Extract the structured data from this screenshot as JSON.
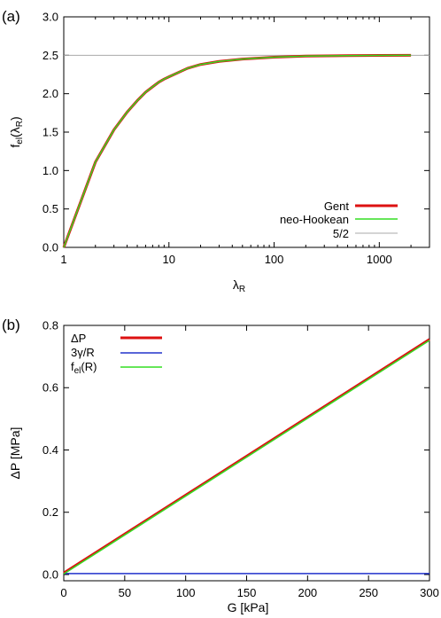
{
  "chart_data": [
    {
      "panel_label": "(a)",
      "type": "line",
      "xscale": "log",
      "xlim": [
        1,
        3000
      ],
      "ylim": [
        0,
        3.0
      ],
      "xticks": [
        1,
        10,
        100,
        1000
      ],
      "xtick_labels": [
        "1",
        "10",
        "100",
        "1000"
      ],
      "yticks": [
        0,
        0.5,
        1.0,
        1.5,
        2.0,
        2.5,
        3.0
      ],
      "ytick_labels": [
        "0.0",
        "0.5",
        "1.0",
        "1.5",
        "2.0",
        "2.5",
        "3.0"
      ],
      "xlabel": "λ",
      "xlabel_sub": "R",
      "ylabel": "f",
      "ylabel_sub": "el",
      "ylabel_arg": "(λ",
      "ylabel_arg_sub": "R",
      "ylabel_close": ")",
      "legend_position": "bottom-right",
      "grid": false,
      "series": [
        {
          "name": "Gent",
          "color": "#dd1111",
          "x": [
            1,
            2,
            3,
            4,
            5,
            6,
            7,
            8,
            9,
            10,
            15,
            20,
            30,
            50,
            100,
            200,
            500,
            1000,
            2000
          ],
          "y": [
            0,
            1.11,
            1.53,
            1.76,
            1.91,
            2.02,
            2.09,
            2.15,
            2.19,
            2.22,
            2.33,
            2.38,
            2.42,
            2.45,
            2.475,
            2.49,
            2.495,
            2.498,
            2.499
          ]
        },
        {
          "name": "neo-Hookean",
          "color": "#33dd22",
          "x": [
            1,
            2,
            3,
            4,
            5,
            6,
            7,
            8,
            9,
            10,
            15,
            20,
            30,
            50,
            100,
            200,
            500,
            1000,
            2000
          ],
          "y": [
            0,
            1.11,
            1.53,
            1.76,
            1.91,
            2.02,
            2.09,
            2.15,
            2.19,
            2.22,
            2.33,
            2.38,
            2.42,
            2.45,
            2.475,
            2.49,
            2.495,
            2.498,
            2.499
          ]
        },
        {
          "name": "5/2",
          "color": "#aaaaaa",
          "x": [
            1,
            3000
          ],
          "y": [
            2.5,
            2.5
          ]
        }
      ]
    },
    {
      "panel_label": "(b)",
      "type": "line",
      "xscale": "linear",
      "xlim": [
        0,
        300
      ],
      "ylim": [
        -0.02,
        0.8
      ],
      "xticks": [
        0,
        50,
        100,
        150,
        200,
        250,
        300
      ],
      "xtick_labels": [
        "0",
        "50",
        "100",
        "150",
        "200",
        "250",
        "300"
      ],
      "yticks": [
        0,
        0.2,
        0.4,
        0.6,
        0.8
      ],
      "ytick_labels": [
        "0.0",
        "0.2",
        "0.4",
        "0.6",
        "0.8"
      ],
      "xlabel": "G [kPa]",
      "ylabel": "ΔP [MPa]",
      "legend_position": "top-left",
      "grid": false,
      "series": [
        {
          "name": "ΔP",
          "color": "#dd1111",
          "x": [
            0,
            300
          ],
          "y": [
            0.005,
            0.755
          ]
        },
        {
          "name": "3γ/R",
          "color": "#2233cc",
          "x": [
            0,
            300
          ],
          "y": [
            0.003,
            0.003
          ]
        },
        {
          "name": "f",
          "name_sub": "el",
          "name_suffix": "(R)",
          "color": "#33dd22",
          "x": [
            0,
            300
          ],
          "y": [
            0.002,
            0.752
          ]
        }
      ]
    }
  ]
}
